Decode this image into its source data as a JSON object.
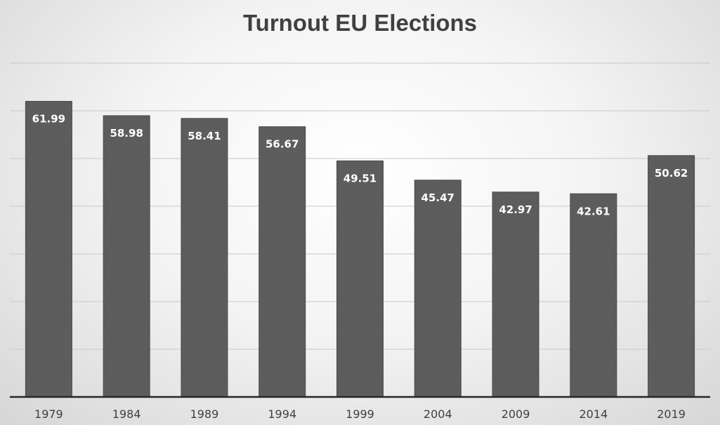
{
  "chart_data": {
    "type": "bar",
    "title": "Turnout EU Elections",
    "xlabel": "",
    "ylabel": "",
    "categories": [
      "1979",
      "1984",
      "1989",
      "1994",
      "1999",
      "2004",
      "2009",
      "2014",
      "2019"
    ],
    "values": [
      61.99,
      58.98,
      58.41,
      56.67,
      49.51,
      45.47,
      42.97,
      42.61,
      50.62
    ],
    "data_labels": [
      "61.99",
      "58.98",
      "58.41",
      "56.67",
      "49.51",
      "45.47",
      "42.97",
      "42.61",
      "50.62"
    ],
    "ylim": [
      0,
      70
    ],
    "grid": true,
    "legend": "none",
    "bar_color": "#595959",
    "label_color": "#ffffff",
    "axis_color": "#262626"
  }
}
